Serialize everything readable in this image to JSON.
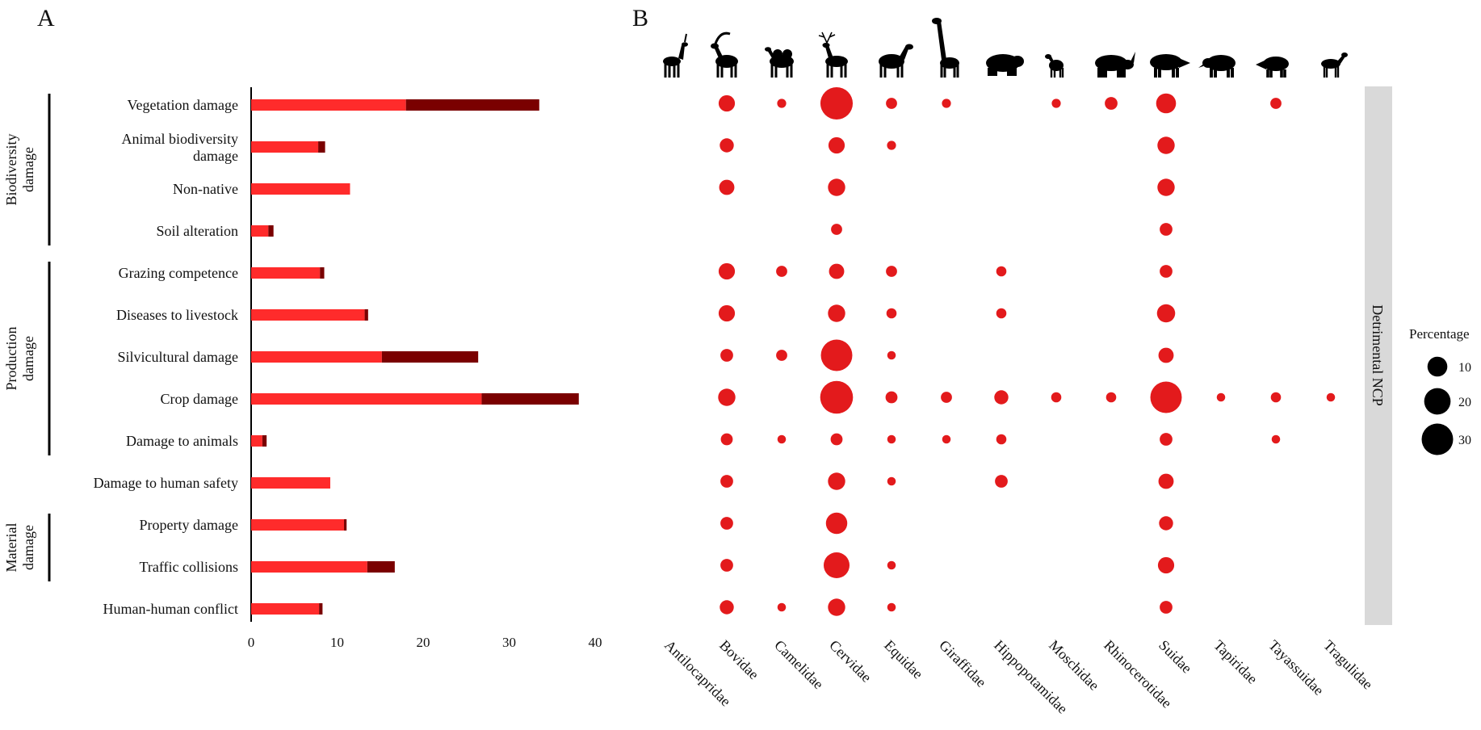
{
  "panel_labels": [
    "A",
    "B"
  ],
  "chart_data": [
    {
      "panel": "A",
      "type": "bar",
      "orientation": "horizontal",
      "stacked": true,
      "categories": [
        "Vegetation damage",
        "Animal biodiversity damage",
        "Non-native",
        "Soil alteration",
        "Grazing competence",
        "Diseases to livestock",
        "Silvicultural damage",
        "Crop damage",
        "Damage to animals",
        "Damage to human safety",
        "Property damage",
        "Traffic collisions",
        "Human-human conflict"
      ],
      "category_label_lines": [
        [
          "Vegetation damage"
        ],
        [
          "Animal biodiversity",
          "damage"
        ],
        [
          "Non-native"
        ],
        [
          "Soil alteration"
        ],
        [
          "Grazing competence"
        ],
        [
          "Diseases to livestock"
        ],
        [
          "Silvicultural damage"
        ],
        [
          "Crop damage"
        ],
        [
          "Damage to animals"
        ],
        [
          "Damage to human safety"
        ],
        [
          "Property damage"
        ],
        [
          "Traffic collisions"
        ],
        [
          "Human-human conflict"
        ]
      ],
      "series": [
        {
          "color": "#ff2b2b",
          "values": [
            18.0,
            7.8,
            11.5,
            2.0,
            8.0,
            13.2,
            15.2,
            26.8,
            1.3,
            9.2,
            10.8,
            13.5,
            7.9
          ]
        },
        {
          "color": "#7a0000",
          "values": [
            15.5,
            0.8,
            0,
            0.6,
            0.5,
            0.4,
            11.2,
            11.3,
            0.5,
            0,
            0.3,
            3.2,
            0.4
          ]
        }
      ],
      "xlim": [
        0,
        40
      ],
      "xticks": [
        0,
        10,
        20,
        30,
        40
      ],
      "groups": [
        {
          "label_lines": [
            "Biodiversity",
            "damage"
          ],
          "from": 0,
          "to": 3
        },
        {
          "label_lines": [
            "Production",
            "damage"
          ],
          "from": 4,
          "to": 8
        },
        {
          "label_lines": [
            "Material",
            "damage"
          ],
          "from": 10,
          "to": 11
        }
      ]
    },
    {
      "panel": "B",
      "type": "scatter",
      "subtype": "bubble",
      "columns": [
        "Antilocapridae",
        "Bovidae",
        "Camelidae",
        "Cervidae",
        "Equidae",
        "Giraffidae",
        "Hippopotamidae",
        "Moschidae",
        "Rhinocerotidae",
        "Suidae",
        "Tapiridae",
        "Tayassuidae",
        "Tragulidae"
      ],
      "rows": [
        "Vegetation damage",
        "Animal biodiversity damage",
        "Non-native",
        "Soil alteration",
        "Grazing competence",
        "Diseases to livestock",
        "Silvicultural damage",
        "Crop damage",
        "Damage to animals",
        "Damage to human safety",
        "Property damage",
        "Traffic collisions",
        "Human-human conflict"
      ],
      "values": [
        [
          0,
          6,
          1,
          32,
          2,
          1,
          0,
          1,
          3,
          10,
          0,
          2,
          0
        ],
        [
          0,
          4,
          0,
          6,
          1,
          0,
          0,
          0,
          0,
          7,
          0,
          0,
          0
        ],
        [
          0,
          5,
          0,
          7,
          0,
          0,
          0,
          0,
          0,
          7,
          0,
          0,
          0
        ],
        [
          0,
          0,
          0,
          2,
          0,
          0,
          0,
          0,
          0,
          3,
          0,
          0,
          0
        ],
        [
          0,
          6,
          2,
          5,
          2,
          0,
          1.5,
          0,
          0,
          3,
          0,
          0,
          0
        ],
        [
          0,
          6,
          0,
          7,
          1.5,
          0,
          1.5,
          0,
          0,
          8,
          0,
          0,
          0
        ],
        [
          0,
          3,
          2,
          30,
          0.8,
          0,
          0,
          0,
          0,
          5,
          0,
          0,
          0
        ],
        [
          0,
          7,
          0,
          33,
          2.5,
          2,
          4,
          1.5,
          1.5,
          30,
          0.8,
          1.5,
          0.8
        ],
        [
          0,
          2.5,
          0.8,
          2.5,
          0.8,
          0.8,
          1.5,
          0,
          0,
          3,
          0,
          0.8,
          0
        ],
        [
          0,
          3,
          0,
          7,
          0.8,
          0,
          3,
          0,
          0,
          5,
          0,
          0,
          0
        ],
        [
          0,
          3,
          0,
          12,
          0,
          0,
          0,
          0,
          0,
          4,
          0,
          0,
          0
        ],
        [
          0,
          3,
          0,
          19,
          0.8,
          0,
          0,
          0,
          0,
          6,
          0,
          0,
          0
        ],
        [
          0,
          4,
          0.8,
          7,
          0.8,
          0,
          0,
          0,
          0,
          3,
          0,
          0,
          0
        ]
      ],
      "bubble_color": "#e31a1c",
      "icons": [
        "pronghorn-icon",
        "ibex-icon",
        "camel-icon",
        "deer-icon",
        "zebra-icon",
        "giraffe-icon",
        "hippo-icon",
        "musk-deer-icon",
        "rhino-icon",
        "boar-icon",
        "tapir-icon",
        "peccary-icon",
        "chevrotain-icon"
      ],
      "facet_label": "Detrimental NCP",
      "legend": {
        "title": "Percentage",
        "values": [
          10,
          20,
          30
        ]
      }
    }
  ]
}
